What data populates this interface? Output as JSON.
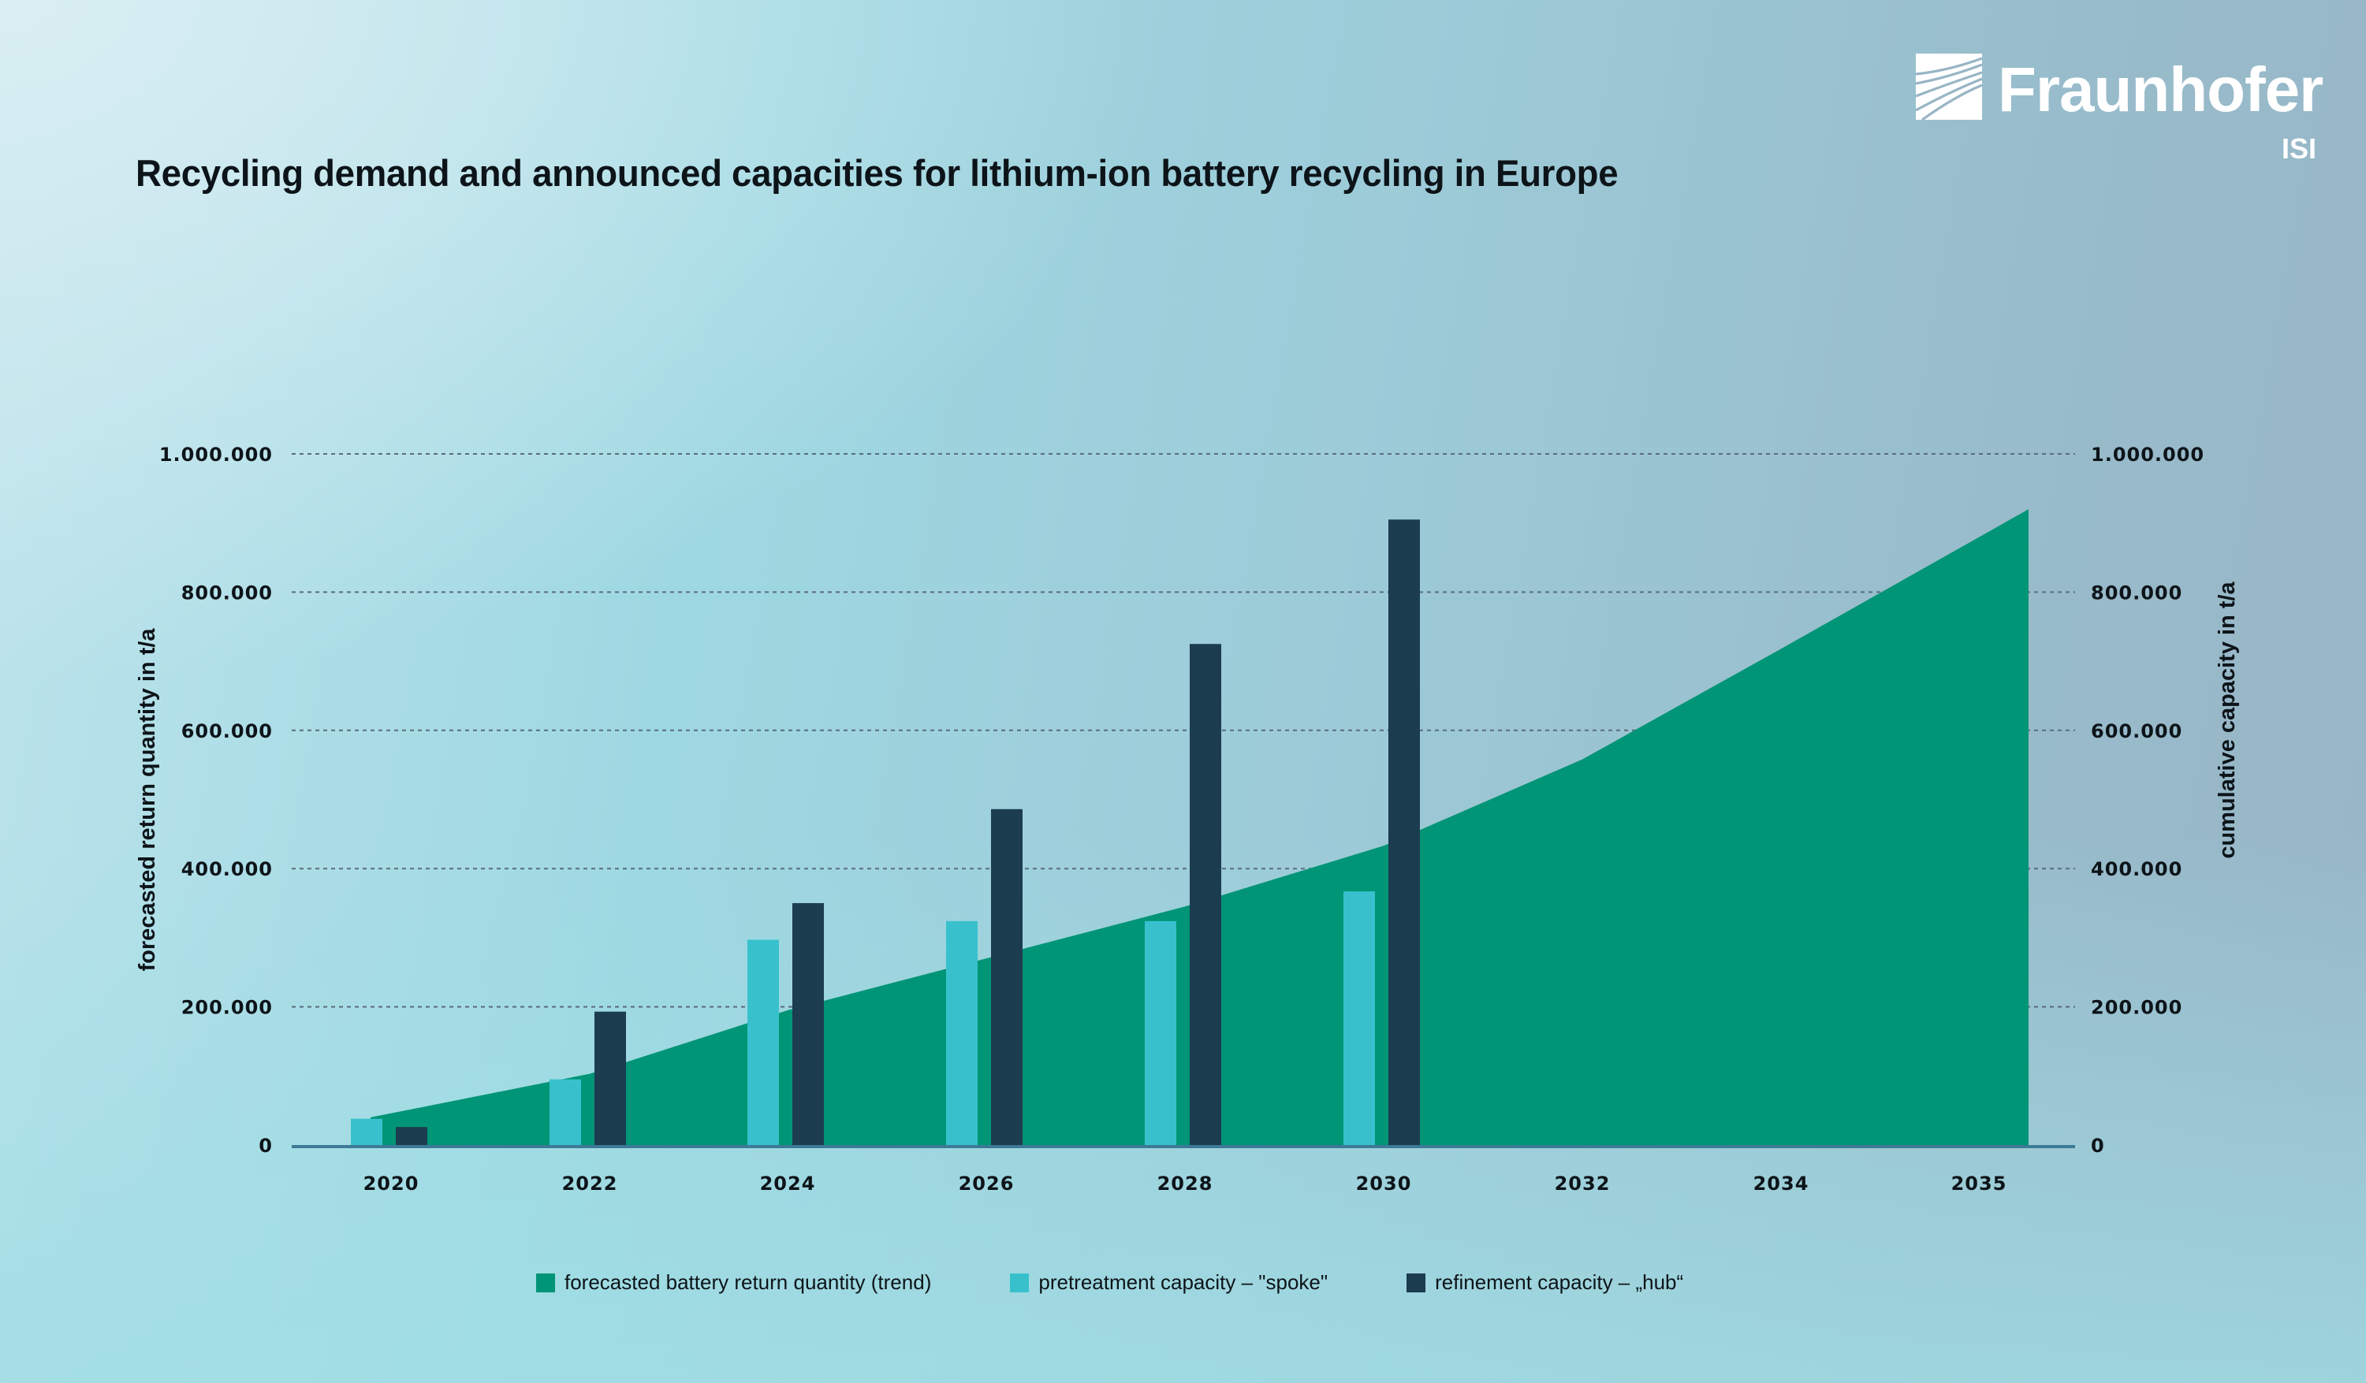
{
  "title": "Recycling demand and announced capacities for lithium-ion battery recycling in Europe",
  "logo": {
    "name": "Fraunhofer",
    "sub": "ISI",
    "icon": "fraunhofer-logo-mark"
  },
  "colors": {
    "area": "#009576",
    "spoke": "#38c1cd",
    "hub": "#1c3c50",
    "grid": "#5a6d7a",
    "axis": "#3d7a96"
  },
  "chart_data": {
    "type": "bar+area",
    "title": "Recycling demand and announced capacities for lithium-ion battery recycling in Europe",
    "ylabel_left": "forecasted return quantity in t/a",
    "ylabel_right": "cumulative capacity in t/a",
    "xlabel": "",
    "ylim": [
      0,
      1000000
    ],
    "yticks": [
      0,
      200000,
      400000,
      600000,
      800000,
      1000000
    ],
    "ytick_labels": [
      "0",
      "200.000",
      "400.000",
      "600.000",
      "800.000",
      "1.000.000"
    ],
    "grid": true,
    "x_tick_labels": [
      "2020",
      "2022",
      "2024",
      "2026",
      "2028",
      "2030",
      "2032",
      "2034",
      "2035"
    ],
    "bar_categories": [
      "2020",
      "2022",
      "2024",
      "2026",
      "2028",
      "2030"
    ],
    "series": [
      {
        "name": "forecasted battery return quantity (trend)",
        "kind": "area",
        "points": [
          {
            "x": "2020",
            "y": 40000
          },
          {
            "x": "2022",
            "y": 103000
          },
          {
            "x": "2024",
            "y": 195000
          },
          {
            "x": "2026",
            "y": 270000
          },
          {
            "x": "2028",
            "y": 345000
          },
          {
            "x": "2030",
            "y": 433000
          },
          {
            "x": "2032",
            "y": 558000
          },
          {
            "x": "2034",
            "y": 718000
          },
          {
            "x": "2035",
            "y": 920000
          }
        ]
      },
      {
        "name": "pretreatment capacity – \"spoke\"",
        "kind": "bar",
        "values": [
          38000,
          95000,
          297000,
          324000,
          324000,
          367000
        ]
      },
      {
        "name": "refinement capacity  – „hub“",
        "kind": "bar",
        "values": [
          26000,
          193000,
          350000,
          486000,
          725000,
          905000
        ]
      }
    ],
    "legend_position": "bottom"
  },
  "legend": [
    {
      "label": "forecasted battery return quantity (trend)",
      "color": "#009576"
    },
    {
      "label": "pretreatment capacity – \"spoke\"",
      "color": "#38c1cd"
    },
    {
      "label": "refinement capacity  – „hub“",
      "color": "#1c3c50"
    }
  ]
}
